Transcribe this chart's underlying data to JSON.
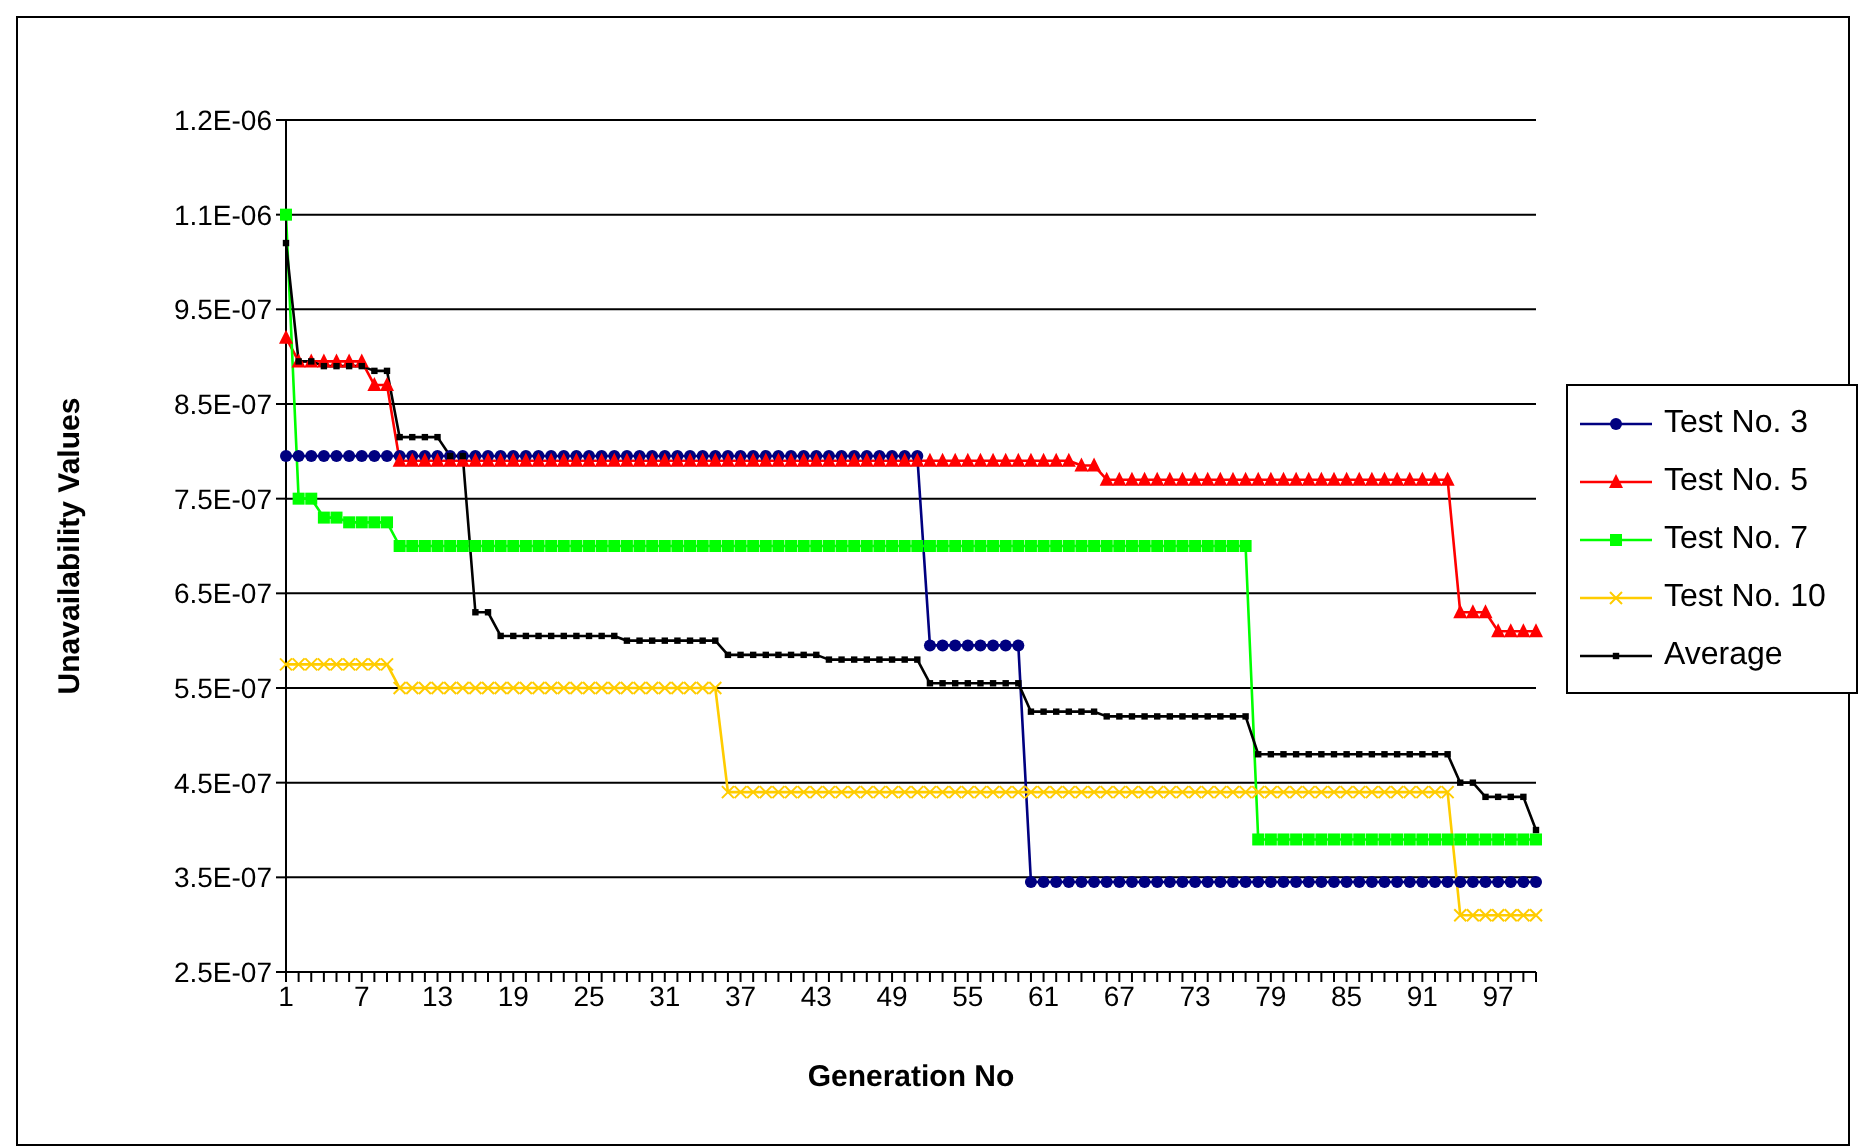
{
  "chart_data": {
    "type": "line",
    "xlabel": "Generation No",
    "ylabel": "Unavailability Values",
    "categories": [
      "1",
      null,
      null,
      null,
      null,
      null,
      "7",
      null,
      null,
      null,
      null,
      null,
      "13",
      null,
      null,
      null,
      null,
      null,
      "19",
      null,
      null,
      null,
      null,
      null,
      "25",
      null,
      null,
      null,
      null,
      null,
      "31",
      null,
      null,
      null,
      null,
      null,
      "37",
      null,
      null,
      null,
      null,
      null,
      "43",
      null,
      null,
      null,
      null,
      null,
      "49",
      null,
      null,
      null,
      null,
      null,
      "55",
      null,
      null,
      null,
      null,
      null,
      "61",
      null,
      null,
      null,
      null,
      null,
      "67",
      null,
      null,
      null,
      null,
      null,
      "73",
      null,
      null,
      null,
      null,
      null,
      "79",
      null,
      null,
      null,
      null,
      null,
      "85",
      null,
      null,
      null,
      null,
      null,
      "91",
      null,
      null,
      null,
      null,
      null,
      "97",
      null,
      null,
      null
    ],
    "ylim": [
      2.5e-07,
      1.15e-06
    ],
    "yticks": [
      {
        "value": 2.5e-07,
        "label": "2.5E-07"
      },
      {
        "value": 3.5e-07,
        "label": "3.5E-07"
      },
      {
        "value": 4.5e-07,
        "label": "4.5E-07"
      },
      {
        "value": 5.5e-07,
        "label": "5.5E-07"
      },
      {
        "value": 6.5e-07,
        "label": "6.5E-07"
      },
      {
        "value": 7.5e-07,
        "label": "7.5E-07"
      },
      {
        "value": 8.5e-07,
        "label": "8.5E-07"
      },
      {
        "value": 9.5e-07,
        "label": "9.5E-07"
      },
      {
        "value": 1.05e-06,
        "label": "1.1E-06"
      },
      {
        "value": 1.15e-06,
        "label": "1.2E-06"
      }
    ],
    "grid": "y",
    "legend": "right",
    "series": [
      {
        "name": "Test No. 3",
        "color": "#000080",
        "marker": "circle",
        "values": [
          7.95e-07,
          7.95e-07,
          7.95e-07,
          7.95e-07,
          7.95e-07,
          7.95e-07,
          7.95e-07,
          7.95e-07,
          7.95e-07,
          7.95e-07,
          7.95e-07,
          7.95e-07,
          7.95e-07,
          7.95e-07,
          7.95e-07,
          7.95e-07,
          7.95e-07,
          7.95e-07,
          7.95e-07,
          7.95e-07,
          7.95e-07,
          7.95e-07,
          7.95e-07,
          7.95e-07,
          7.95e-07,
          7.95e-07,
          7.95e-07,
          7.95e-07,
          7.95e-07,
          7.95e-07,
          7.95e-07,
          7.95e-07,
          7.95e-07,
          7.95e-07,
          7.95e-07,
          7.95e-07,
          7.95e-07,
          7.95e-07,
          7.95e-07,
          7.95e-07,
          7.95e-07,
          7.95e-07,
          7.95e-07,
          7.95e-07,
          7.95e-07,
          7.95e-07,
          7.95e-07,
          7.95e-07,
          7.95e-07,
          7.95e-07,
          7.95e-07,
          5.95e-07,
          5.95e-07,
          5.95e-07,
          5.95e-07,
          5.95e-07,
          5.95e-07,
          5.95e-07,
          5.95e-07,
          3.45e-07,
          3.45e-07,
          3.45e-07,
          3.45e-07,
          3.45e-07,
          3.45e-07,
          3.45e-07,
          3.45e-07,
          3.45e-07,
          3.45e-07,
          3.45e-07,
          3.45e-07,
          3.45e-07,
          3.45e-07,
          3.45e-07,
          3.45e-07,
          3.45e-07,
          3.45e-07,
          3.45e-07,
          3.45e-07,
          3.45e-07,
          3.45e-07,
          3.45e-07,
          3.45e-07,
          3.45e-07,
          3.45e-07,
          3.45e-07,
          3.45e-07,
          3.45e-07,
          3.45e-07,
          3.45e-07,
          3.45e-07,
          3.45e-07,
          3.45e-07,
          3.45e-07,
          3.45e-07,
          3.45e-07,
          3.45e-07,
          3.45e-07,
          3.45e-07,
          3.45e-07
        ]
      },
      {
        "name": "Test No. 5",
        "color": "#ff0000",
        "marker": "triangle",
        "values": [
          9.2e-07,
          8.95e-07,
          8.95e-07,
          8.95e-07,
          8.95e-07,
          8.95e-07,
          8.95e-07,
          8.7e-07,
          8.7e-07,
          7.9e-07,
          7.9e-07,
          7.9e-07,
          7.9e-07,
          7.9e-07,
          7.9e-07,
          7.9e-07,
          7.9e-07,
          7.9e-07,
          7.9e-07,
          7.9e-07,
          7.9e-07,
          7.9e-07,
          7.9e-07,
          7.9e-07,
          7.9e-07,
          7.9e-07,
          7.9e-07,
          7.9e-07,
          7.9e-07,
          7.9e-07,
          7.9e-07,
          7.9e-07,
          7.9e-07,
          7.9e-07,
          7.9e-07,
          7.9e-07,
          7.9e-07,
          7.9e-07,
          7.9e-07,
          7.9e-07,
          7.9e-07,
          7.9e-07,
          7.9e-07,
          7.9e-07,
          7.9e-07,
          7.9e-07,
          7.9e-07,
          7.9e-07,
          7.9e-07,
          7.9e-07,
          7.9e-07,
          7.9e-07,
          7.9e-07,
          7.9e-07,
          7.9e-07,
          7.9e-07,
          7.9e-07,
          7.9e-07,
          7.9e-07,
          7.9e-07,
          7.9e-07,
          7.9e-07,
          7.9e-07,
          7.85e-07,
          7.85e-07,
          7.7e-07,
          7.7e-07,
          7.7e-07,
          7.7e-07,
          7.7e-07,
          7.7e-07,
          7.7e-07,
          7.7e-07,
          7.7e-07,
          7.7e-07,
          7.7e-07,
          7.7e-07,
          7.7e-07,
          7.7e-07,
          7.7e-07,
          7.7e-07,
          7.7e-07,
          7.7e-07,
          7.7e-07,
          7.7e-07,
          7.7e-07,
          7.7e-07,
          7.7e-07,
          7.7e-07,
          7.7e-07,
          7.7e-07,
          7.7e-07,
          7.7e-07,
          6.3e-07,
          6.3e-07,
          6.3e-07,
          6.1e-07,
          6.1e-07,
          6.1e-07,
          6.1e-07
        ]
      },
      {
        "name": "Test No. 7",
        "color": "#00ff00",
        "marker": "square",
        "values": [
          1.05e-06,
          7.5e-07,
          7.5e-07,
          7.3e-07,
          7.3e-07,
          7.25e-07,
          7.25e-07,
          7.25e-07,
          7.25e-07,
          7e-07,
          7e-07,
          7e-07,
          7e-07,
          7e-07,
          7e-07,
          7e-07,
          7e-07,
          7e-07,
          7e-07,
          7e-07,
          7e-07,
          7e-07,
          7e-07,
          7e-07,
          7e-07,
          7e-07,
          7e-07,
          7e-07,
          7e-07,
          7e-07,
          7e-07,
          7e-07,
          7e-07,
          7e-07,
          7e-07,
          7e-07,
          7e-07,
          7e-07,
          7e-07,
          7e-07,
          7e-07,
          7e-07,
          7e-07,
          7e-07,
          7e-07,
          7e-07,
          7e-07,
          7e-07,
          7e-07,
          7e-07,
          7e-07,
          7e-07,
          7e-07,
          7e-07,
          7e-07,
          7e-07,
          7e-07,
          7e-07,
          7e-07,
          7e-07,
          7e-07,
          7e-07,
          7e-07,
          7e-07,
          7e-07,
          7e-07,
          7e-07,
          7e-07,
          7e-07,
          7e-07,
          7e-07,
          7e-07,
          7e-07,
          7e-07,
          7e-07,
          7e-07,
          7e-07,
          3.9e-07,
          3.9e-07,
          3.9e-07,
          3.9e-07,
          3.9e-07,
          3.9e-07,
          3.9e-07,
          3.9e-07,
          3.9e-07,
          3.9e-07,
          3.9e-07,
          3.9e-07,
          3.9e-07,
          3.9e-07,
          3.9e-07,
          3.9e-07,
          3.9e-07,
          3.9e-07,
          3.9e-07,
          3.9e-07,
          3.9e-07,
          3.9e-07,
          3.9e-07
        ]
      },
      {
        "name": "Test No. 10",
        "color": "#ffcc00",
        "marker": "cross",
        "values": [
          5.75e-07,
          5.75e-07,
          5.75e-07,
          5.75e-07,
          5.75e-07,
          5.75e-07,
          5.75e-07,
          5.75e-07,
          5.75e-07,
          5.5e-07,
          5.5e-07,
          5.5e-07,
          5.5e-07,
          5.5e-07,
          5.5e-07,
          5.5e-07,
          5.5e-07,
          5.5e-07,
          5.5e-07,
          5.5e-07,
          5.5e-07,
          5.5e-07,
          5.5e-07,
          5.5e-07,
          5.5e-07,
          5.5e-07,
          5.5e-07,
          5.5e-07,
          5.5e-07,
          5.5e-07,
          5.5e-07,
          5.5e-07,
          5.5e-07,
          5.5e-07,
          5.5e-07,
          4.4e-07,
          4.4e-07,
          4.4e-07,
          4.4e-07,
          4.4e-07,
          4.4e-07,
          4.4e-07,
          4.4e-07,
          4.4e-07,
          4.4e-07,
          4.4e-07,
          4.4e-07,
          4.4e-07,
          4.4e-07,
          4.4e-07,
          4.4e-07,
          4.4e-07,
          4.4e-07,
          4.4e-07,
          4.4e-07,
          4.4e-07,
          4.4e-07,
          4.4e-07,
          4.4e-07,
          4.4e-07,
          4.4e-07,
          4.4e-07,
          4.4e-07,
          4.4e-07,
          4.4e-07,
          4.4e-07,
          4.4e-07,
          4.4e-07,
          4.4e-07,
          4.4e-07,
          4.4e-07,
          4.4e-07,
          4.4e-07,
          4.4e-07,
          4.4e-07,
          4.4e-07,
          4.4e-07,
          4.4e-07,
          4.4e-07,
          4.4e-07,
          4.4e-07,
          4.4e-07,
          4.4e-07,
          4.4e-07,
          4.4e-07,
          4.4e-07,
          4.4e-07,
          4.4e-07,
          4.4e-07,
          4.4e-07,
          4.4e-07,
          4.4e-07,
          4.4e-07,
          3.1e-07,
          3.1e-07,
          3.1e-07,
          3.1e-07,
          3.1e-07,
          3.1e-07,
          3.1e-07
        ]
      },
      {
        "name": "Average",
        "color": "#000000",
        "marker": "square",
        "values": [
          1.02e-06,
          8.95e-07,
          8.95e-07,
          8.9e-07,
          8.9e-07,
          8.9e-07,
          8.9e-07,
          8.85e-07,
          8.85e-07,
          8.15e-07,
          8.15e-07,
          8.15e-07,
          8.15e-07,
          7.95e-07,
          7.95e-07,
          6.3e-07,
          6.3e-07,
          6.05e-07,
          6.05e-07,
          6.05e-07,
          6.05e-07,
          6.05e-07,
          6.05e-07,
          6.05e-07,
          6.05e-07,
          6.05e-07,
          6.05e-07,
          6e-07,
          6e-07,
          6e-07,
          6e-07,
          6e-07,
          6e-07,
          6e-07,
          6e-07,
          5.85e-07,
          5.85e-07,
          5.85e-07,
          5.85e-07,
          5.85e-07,
          5.85e-07,
          5.85e-07,
          5.85e-07,
          5.8e-07,
          5.8e-07,
          5.8e-07,
          5.8e-07,
          5.8e-07,
          5.8e-07,
          5.8e-07,
          5.8e-07,
          5.55e-07,
          5.55e-07,
          5.55e-07,
          5.55e-07,
          5.55e-07,
          5.55e-07,
          5.55e-07,
          5.55e-07,
          5.25e-07,
          5.25e-07,
          5.25e-07,
          5.25e-07,
          5.25e-07,
          5.25e-07,
          5.2e-07,
          5.2e-07,
          5.2e-07,
          5.2e-07,
          5.2e-07,
          5.2e-07,
          5.2e-07,
          5.2e-07,
          5.2e-07,
          5.2e-07,
          5.2e-07,
          5.2e-07,
          4.8e-07,
          4.8e-07,
          4.8e-07,
          4.8e-07,
          4.8e-07,
          4.8e-07,
          4.8e-07,
          4.8e-07,
          4.8e-07,
          4.8e-07,
          4.8e-07,
          4.8e-07,
          4.8e-07,
          4.8e-07,
          4.8e-07,
          4.8e-07,
          4.5e-07,
          4.5e-07,
          4.35e-07,
          4.35e-07,
          4.35e-07,
          4.35e-07,
          4e-07
        ]
      }
    ]
  }
}
